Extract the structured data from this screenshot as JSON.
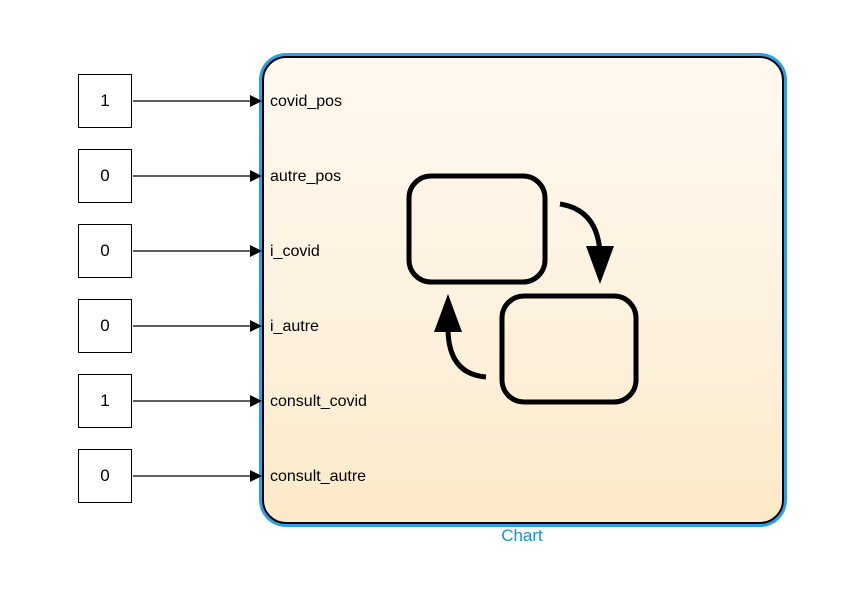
{
  "constants": [
    {
      "value": "1"
    },
    {
      "value": "0"
    },
    {
      "value": "0"
    },
    {
      "value": "0"
    },
    {
      "value": "1"
    },
    {
      "value": "0"
    }
  ],
  "chart": {
    "name": "Chart",
    "ports": [
      {
        "label": "covid_pos"
      },
      {
        "label": "autre_pos"
      },
      {
        "label": "i_covid"
      },
      {
        "label": "i_autre"
      },
      {
        "label": "consult_covid"
      },
      {
        "label": "consult_autre"
      }
    ]
  },
  "colors": {
    "selection_outline": "#2a9fea",
    "chart_name": "#1a8fd8",
    "chart_fill_top": "#fff9f0",
    "chart_fill_bottom": "#fce9c7"
  },
  "icons": [
    "stateflow-chart-icon"
  ]
}
